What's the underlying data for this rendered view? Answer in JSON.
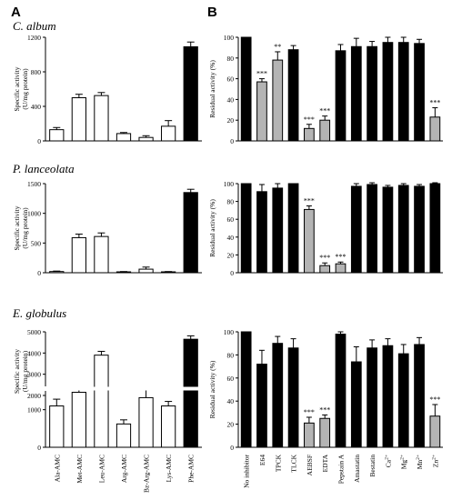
{
  "panel_labels": [
    "A",
    "B"
  ],
  "row_titles": [
    "C. album",
    "P. lanceolata",
    "E. globulus"
  ],
  "chart_data": [
    {
      "type": "bar",
      "panel": "A",
      "title": "C. album",
      "ylabel": [
        "Specific activity",
        "(U/mg protein)"
      ],
      "categories": [
        "Ala-AMC",
        "Met-AMC",
        "Leu-AMC",
        "Arg-AMC",
        "Bz-Arg-AMC",
        "Lys-AMC",
        "Phe-AMC"
      ],
      "values": [
        130,
        500,
        525,
        85,
        40,
        170,
        1090
      ],
      "errors": [
        25,
        40,
        35,
        12,
        20,
        65,
        55
      ],
      "fills": [
        "white",
        "white",
        "white",
        "white",
        "white",
        "white",
        "black"
      ],
      "ylim": [
        0,
        1200
      ],
      "yticks": [
        0,
        400,
        800,
        1200
      ]
    },
    {
      "type": "bar",
      "panel": "A",
      "title": "P. lanceolata",
      "ylabel": [
        "Specific activity",
        "(U/mg protein)"
      ],
      "categories": [
        "Ala-AMC",
        "Met-AMC",
        "Leu-AMC",
        "Arg-AMC",
        "Bz-Arg-AMC",
        "Lys-AMC",
        "Phe-AMC"
      ],
      "values": [
        20,
        590,
        610,
        15,
        60,
        15,
        1350
      ],
      "errors": [
        8,
        60,
        60,
        5,
        35,
        5,
        55
      ],
      "fills": [
        "white",
        "white",
        "white",
        "white",
        "white",
        "white",
        "black"
      ],
      "ylim": [
        0,
        1500
      ],
      "yticks": [
        0,
        500,
        1000,
        1500
      ]
    },
    {
      "type": "bar",
      "panel": "A",
      "title": "E. globulus",
      "ylabel": [
        "Specific activity",
        "(U/mg protein)"
      ],
      "categories": [
        "Ala-AMC",
        "Met-AMC",
        "Leu-AMC",
        "Arg-AMC",
        "Bz-Arg-AMC",
        "Lys-AMC",
        "Phe-AMC"
      ],
      "values": [
        1100,
        2150,
        3900,
        620,
        1320,
        1100,
        4650
      ],
      "errors": [
        180,
        180,
        180,
        110,
        250,
        120,
        160
      ],
      "fills": [
        "white",
        "white",
        "white",
        "white",
        "white",
        "white",
        "black"
      ],
      "axis_break": true,
      "yticks_lower": [
        0,
        1000
      ],
      "yticks_upper": [
        2000,
        3000,
        4000,
        5000
      ]
    },
    {
      "type": "bar",
      "panel": "B",
      "title": "C. album",
      "ylabel": "Residual activity (%)",
      "categories": [
        "No inhibitor",
        "E64",
        "TPCK",
        "TLCK",
        "AEBSF",
        "EDTA",
        "Pepstain A",
        "Amastatin",
        "Bestatin",
        "Ca2+",
        "Mg2+",
        "Mn2+",
        "Zn2+"
      ],
      "values": [
        100,
        57,
        78,
        88,
        12,
        20,
        87,
        91,
        91,
        95,
        95,
        94,
        23
      ],
      "errors": [
        0,
        3,
        8,
        4,
        4,
        4,
        6,
        8,
        5,
        5,
        5,
        4,
        9
      ],
      "fills": [
        "black",
        "grey",
        "grey",
        "black",
        "grey",
        "grey",
        "black",
        "black",
        "black",
        "black",
        "black",
        "black",
        "grey"
      ],
      "significance": [
        "",
        "***",
        "**",
        "",
        "***",
        "***",
        "",
        "",
        "",
        "",
        "",
        "",
        "***"
      ],
      "ylim": [
        0,
        100
      ],
      "yticks": [
        0,
        20,
        40,
        60,
        80,
        100
      ]
    },
    {
      "type": "bar",
      "panel": "B",
      "title": "P. lanceolata",
      "ylabel": "Residual activity (%)",
      "categories": [
        "No inhibitor",
        "E64",
        "TPCK",
        "TLCK",
        "AEBSF",
        "EDTA",
        "Pepstain A",
        "Amastatin",
        "Bestatin",
        "Ca2+",
        "Mg2+",
        "Mn2+",
        "Zn2+"
      ],
      "values": [
        100,
        91,
        95,
        100,
        71,
        8,
        10,
        97,
        99,
        96,
        98,
        97,
        100
      ],
      "errors": [
        0,
        8,
        5,
        0,
        4,
        3,
        2,
        3,
        2,
        2,
        2,
        2,
        1
      ],
      "fills": [
        "black",
        "black",
        "black",
        "black",
        "grey",
        "grey",
        "grey",
        "black",
        "black",
        "black",
        "black",
        "black",
        "black"
      ],
      "significance": [
        "",
        "",
        "",
        "",
        "***",
        "***",
        "***",
        "",
        "",
        "",
        "",
        "",
        ""
      ],
      "ylim": [
        0,
        100
      ],
      "yticks": [
        0,
        20,
        40,
        60,
        80,
        100
      ]
    },
    {
      "type": "bar",
      "panel": "B",
      "title": "E. globulus",
      "ylabel": "Residual activity (%)",
      "categories": [
        "No inhibitor",
        "E64",
        "TPCK",
        "TLCK",
        "AEBSF",
        "EDTA",
        "Pepstain A",
        "Amastatin",
        "Bestatin",
        "Ca2+",
        "Mg2+",
        "Mn2+",
        "Zn2+"
      ],
      "values": [
        100,
        72,
        90,
        86,
        21,
        25,
        98,
        74,
        86,
        88,
        81,
        89,
        27
      ],
      "errors": [
        0,
        12,
        6,
        8,
        5,
        3,
        2,
        13,
        7,
        6,
        8,
        6,
        10
      ],
      "fills": [
        "black",
        "black",
        "black",
        "black",
        "grey",
        "grey",
        "black",
        "black",
        "black",
        "black",
        "black",
        "black",
        "grey"
      ],
      "significance": [
        "",
        "",
        "",
        "",
        "***",
        "***",
        "",
        "",
        "",
        "",
        "",
        "",
        "***"
      ],
      "ylim": [
        0,
        100
      ],
      "yticks": [
        0,
        20,
        40,
        60,
        80,
        100
      ]
    }
  ],
  "category_display_A": [
    "Ala-AMC",
    "Met-AMC",
    "Leu-AMC",
    "Arg-AMC",
    "Bz-Arg-AMC",
    "Lys-AMC",
    "Phe-AMC"
  ],
  "category_display_B": [
    {
      "text": "No inhibitor",
      "sup": ""
    },
    {
      "text": "E64",
      "sup": ""
    },
    {
      "text": "TPCK",
      "sup": ""
    },
    {
      "text": "TLCK",
      "sup": ""
    },
    {
      "text": "AEBSF",
      "sup": ""
    },
    {
      "text": "EDTA",
      "sup": ""
    },
    {
      "text": "Pepstain A",
      "sup": ""
    },
    {
      "text": "Amastatin",
      "sup": ""
    },
    {
      "text": "Bestatin",
      "sup": ""
    },
    {
      "text": "Ca",
      "sup": "2+"
    },
    {
      "text": "Mg",
      "sup": "2+"
    },
    {
      "text": "Mn",
      "sup": "2+"
    },
    {
      "text": "Zn",
      "sup": "2+"
    }
  ],
  "colors": {
    "black_bar": "#000000",
    "grey_bar": "#b4b4b4",
    "white_bar": "#ffffff",
    "axis": "#000000"
  }
}
